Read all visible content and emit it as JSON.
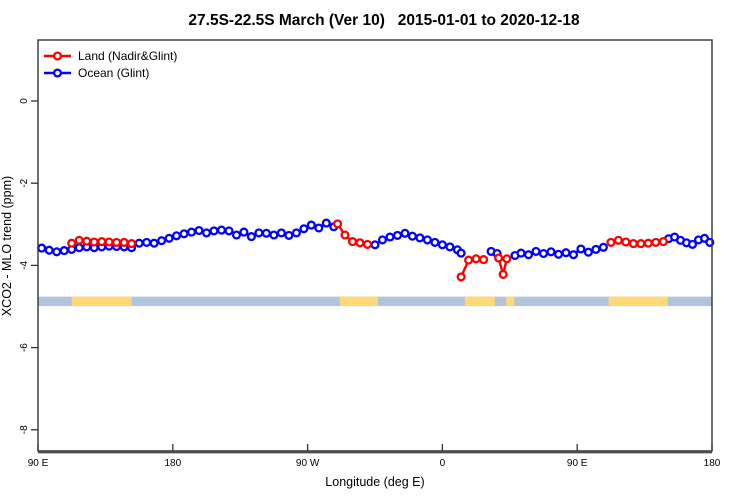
{
  "title": "27.5S-22.5S March (Ver 10)   2015-01-01 to 2020-12-18",
  "legend": [
    {
      "label": "Land (Nadir&Glint)",
      "color": "#FF0000"
    },
    {
      "label": "Ocean (Glint)",
      "color": "#0000FF"
    }
  ],
  "chart_data": {
    "type": "line",
    "title": "27.5S-22.5S March (Ver 10)   2015-01-01 to 2020-12-18",
    "xlabel": "Longitude (deg E)",
    "ylabel": "XCO2 - MLO trend (ppm)",
    "axis_note": "x-axis runs eastward from 90E around the globe to 180 (450 degrees total); t = degrees east of 0 continuing past 360",
    "xlim": [
      90,
      540
    ],
    "ylim": [
      -8.5,
      1.5
    ],
    "grid": false,
    "legend_position": "top-left inside",
    "x_ticks": [
      {
        "t": 90,
        "label": "90 E"
      },
      {
        "t": 180,
        "label": "180"
      },
      {
        "t": 270,
        "label": "90 W"
      },
      {
        "t": 360,
        "label": "0"
      },
      {
        "t": 450,
        "label": "90 E"
      },
      {
        "t": 540,
        "label": "180"
      }
    ],
    "y_ticks": [
      0,
      -2,
      -4,
      -6,
      -8
    ],
    "surface_band": {
      "description": "land/ocean strip along longitude axis",
      "ocean_color": "#B0C4DE",
      "land_color": "#FFD978",
      "y_top": -4.76,
      "y_bottom": -4.99,
      "land_segments_t": [
        [
          112.5,
          152.5
        ],
        [
          291.5,
          317
        ],
        [
          375,
          395
        ],
        [
          402.5,
          408
        ],
        [
          471,
          510.5
        ]
      ]
    },
    "series": [
      {
        "name": "Land (Nadir&Glint)",
        "color": "#FF0000",
        "marker": "open-circle",
        "segments": [
          [
            [
              112.5,
              -3.46
            ],
            [
              117.5,
              -3.39
            ],
            [
              122.5,
              -3.41
            ],
            [
              127.5,
              -3.43
            ],
            [
              132.5,
              -3.42
            ],
            [
              137.5,
              -3.43
            ],
            [
              142.5,
              -3.44
            ],
            [
              147.5,
              -3.44
            ],
            [
              152.5,
              -3.47
            ]
          ],
          [
            [
              290,
              -2.99
            ],
            [
              295,
              -3.26
            ],
            [
              300,
              -3.42
            ],
            [
              305,
              -3.45
            ],
            [
              310,
              -3.49
            ]
          ],
          [
            [
              372.5,
              -4.28
            ],
            [
              377.5,
              -3.87
            ],
            [
              382.5,
              -3.84
            ],
            [
              387.5,
              -3.86
            ]
          ],
          [
            [
              397.5,
              -3.82
            ],
            [
              400.5,
              -4.22
            ],
            [
              403,
              -3.84
            ]
          ],
          [
            [
              472.5,
              -3.44
            ],
            [
              477.5,
              -3.39
            ],
            [
              482.5,
              -3.43
            ],
            [
              487.5,
              -3.47
            ],
            [
              492.5,
              -3.47
            ],
            [
              497.5,
              -3.46
            ],
            [
              502.5,
              -3.44
            ],
            [
              507.5,
              -3.42
            ]
          ]
        ]
      },
      {
        "name": "Ocean (Glint)",
        "color": "#0000FF",
        "marker": "open-circle",
        "segments": [
          [
            [
              92.5,
              -3.58
            ],
            [
              97.5,
              -3.63
            ],
            [
              102.5,
              -3.67
            ],
            [
              107.5,
              -3.64
            ],
            [
              112.5,
              -3.61
            ],
            [
              117.5,
              -3.57
            ],
            [
              122.5,
              -3.55
            ],
            [
              127.5,
              -3.57
            ],
            [
              132.5,
              -3.55
            ],
            [
              137.5,
              -3.53
            ],
            [
              142.5,
              -3.54
            ],
            [
              147.5,
              -3.55
            ],
            [
              152.5,
              -3.57
            ],
            [
              157.5,
              -3.46
            ],
            [
              162.5,
              -3.44
            ],
            [
              167.5,
              -3.46
            ],
            [
              172.5,
              -3.4
            ],
            [
              177.5,
              -3.34
            ],
            [
              182.5,
              -3.28
            ],
            [
              187.5,
              -3.23
            ],
            [
              192.5,
              -3.19
            ],
            [
              197.5,
              -3.15
            ],
            [
              202.5,
              -3.21
            ],
            [
              207.5,
              -3.16
            ],
            [
              212.5,
              -3.14
            ],
            [
              217.5,
              -3.16
            ],
            [
              222.5,
              -3.26
            ],
            [
              227.5,
              -3.19
            ],
            [
              232.5,
              -3.3
            ],
            [
              237.5,
              -3.21
            ],
            [
              242.5,
              -3.22
            ],
            [
              247.5,
              -3.26
            ],
            [
              252.5,
              -3.21
            ],
            [
              257.5,
              -3.27
            ],
            [
              262.5,
              -3.21
            ],
            [
              267.5,
              -3.11
            ],
            [
              272.5,
              -3.02
            ],
            [
              277.5,
              -3.09
            ],
            [
              282.5,
              -2.97
            ],
            [
              287.5,
              -3.06
            ]
          ],
          [
            [
              315,
              -3.5
            ],
            [
              320,
              -3.38
            ],
            [
              325,
              -3.31
            ],
            [
              330,
              -3.27
            ],
            [
              335,
              -3.22
            ],
            [
              340,
              -3.29
            ],
            [
              345,
              -3.33
            ],
            [
              350,
              -3.38
            ],
            [
              355,
              -3.44
            ],
            [
              360,
              -3.5
            ],
            [
              365,
              -3.55
            ],
            [
              370,
              -3.62
            ],
            [
              372.5,
              -3.7
            ]
          ],
          [
            [
              392.5,
              -3.66
            ],
            [
              396.5,
              -3.71
            ]
          ],
          [
            [
              408.5,
              -3.76
            ],
            [
              412.5,
              -3.7
            ],
            [
              417.5,
              -3.74
            ],
            [
              422.5,
              -3.66
            ],
            [
              427.5,
              -3.71
            ],
            [
              432.5,
              -3.67
            ],
            [
              437.5,
              -3.73
            ],
            [
              442.5,
              -3.69
            ],
            [
              447.5,
              -3.74
            ],
            [
              452.5,
              -3.6
            ],
            [
              457.5,
              -3.68
            ],
            [
              462.5,
              -3.61
            ],
            [
              467.5,
              -3.56
            ]
          ],
          [
            [
              511,
              -3.35
            ],
            [
              515,
              -3.31
            ],
            [
              519,
              -3.39
            ],
            [
              523,
              -3.45
            ],
            [
              527,
              -3.49
            ],
            [
              531,
              -3.38
            ],
            [
              535,
              -3.34
            ],
            [
              538.5,
              -3.44
            ]
          ]
        ]
      }
    ]
  },
  "style": {
    "box_color": "#333333",
    "bottom_axis_color": "#4D4D4D",
    "text_color": "#000000"
  }
}
